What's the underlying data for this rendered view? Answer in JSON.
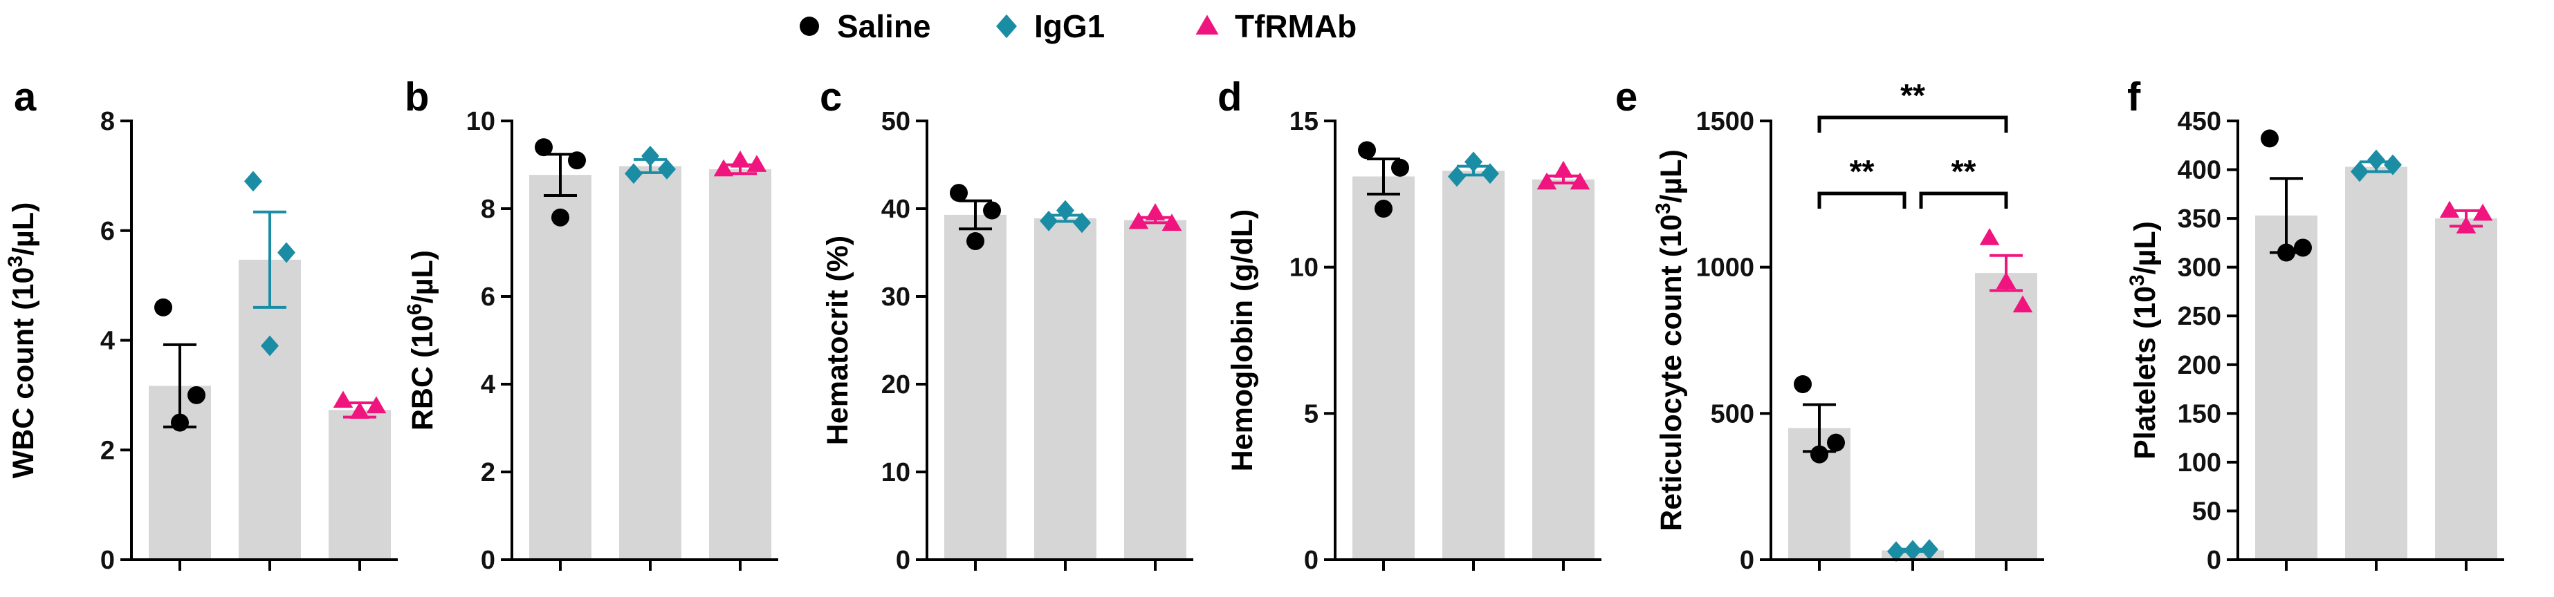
{
  "legend": {
    "items": [
      {
        "name": "Saline",
        "shape": "circle",
        "color": "#000000"
      },
      {
        "name": "IgG1",
        "shape": "diamond",
        "color": "#1a8da5"
      },
      {
        "name": "TfRMAb",
        "shape": "triangle",
        "color": "#f0157e"
      }
    ]
  },
  "colors": {
    "bar": "#d6d6d6",
    "axis": "#000000"
  },
  "chart_data": [
    {
      "panel": "a",
      "type": "bar",
      "ylabel": "WBC count (10^3/µL)",
      "ylabel_main": "WBC count (10",
      "ylabel_sup": "3",
      "ylabel_tail": "/µL)",
      "ylim": [
        0,
        8
      ],
      "ticks": [
        0,
        2,
        4,
        6,
        8
      ],
      "categories": [
        "Saline",
        "IgG1",
        "TfRMAb"
      ],
      "means": [
        3.17,
        5.47,
        2.73
      ],
      "sem": [
        0.75,
        0.87,
        0.13
      ],
      "points": [
        [
          4.6,
          2.5,
          3.0
        ],
        [
          6.9,
          3.9,
          5.6
        ],
        [
          2.9,
          2.7,
          2.8
        ]
      ]
    },
    {
      "panel": "b",
      "type": "bar",
      "ylabel": "RBC (10^6/µL)",
      "ylabel_main": "RBC (10",
      "ylabel_sup": "6",
      "ylabel_tail": "/µL)",
      "ylim": [
        0,
        10
      ],
      "ticks": [
        0,
        2,
        4,
        6,
        8,
        10
      ],
      "categories": [
        "Saline",
        "IgG1",
        "TfRMAb"
      ],
      "means": [
        8.77,
        8.97,
        8.9
      ],
      "sem": [
        0.47,
        0.15,
        0.1
      ],
      "points": [
        [
          9.4,
          7.8,
          9.1
        ],
        [
          8.8,
          9.2,
          8.9
        ],
        [
          8.9,
          9.1,
          9.0
        ]
      ]
    },
    {
      "panel": "c",
      "type": "bar",
      "ylabel": "Hematocrit (%)",
      "ylabel_main": "Hematocrit (%)",
      "ylabel_sup": "",
      "ylabel_tail": "",
      "ylim": [
        0,
        50
      ],
      "ticks": [
        0,
        10,
        20,
        30,
        40,
        50
      ],
      "categories": [
        "Saline",
        "IgG1",
        "TfRMAb"
      ],
      "means": [
        39.3,
        38.9,
        38.7
      ],
      "sem": [
        1.6,
        0.35,
        0.3
      ],
      "points": [
        [
          41.8,
          36.3,
          39.8
        ],
        [
          38.6,
          39.8,
          38.4
        ],
        [
          38.5,
          39.5,
          38.3
        ]
      ]
    },
    {
      "panel": "d",
      "type": "bar",
      "ylabel": "Hemoglobin (g/dL)",
      "ylabel_main": "Hemoglobin (g/dL)",
      "ylabel_sup": "",
      "ylabel_tail": "",
      "ylim": [
        0,
        15
      ],
      "ticks": [
        0,
        5,
        10,
        15
      ],
      "categories": [
        "Saline",
        "IgG1",
        "TfRMAb"
      ],
      "means": [
        13.1,
        13.3,
        13.0
      ],
      "sem": [
        0.6,
        0.15,
        0.12
      ],
      "points": [
        [
          14.0,
          12.0,
          13.4
        ],
        [
          13.1,
          13.6,
          13.2
        ],
        [
          12.9,
          13.3,
          12.9
        ]
      ]
    },
    {
      "panel": "e",
      "type": "bar",
      "ylabel": "Reticulocyte count (10^3/µL)",
      "ylabel_main": "Reticulocyte count  (10",
      "ylabel_sup": "3",
      "ylabel_tail": "/µL)",
      "ylim": [
        0,
        1500
      ],
      "ticks": [
        0,
        500,
        1000,
        1500
      ],
      "categories": [
        "Saline",
        "IgG1",
        "TfRMAb"
      ],
      "means": [
        450,
        32,
        980
      ],
      "sem": [
        80,
        4,
        60
      ],
      "points": [
        [
          600,
          360,
          400
        ],
        [
          28,
          32,
          35
        ],
        [
          1100,
          950,
          870
        ]
      ],
      "significance": [
        {
          "from": 0,
          "to": 2,
          "level": 1,
          "label": "**"
        },
        {
          "from": 0,
          "to": 1,
          "level": 0,
          "label": "**"
        },
        {
          "from": 1,
          "to": 2,
          "level": 0,
          "label": "**"
        }
      ]
    },
    {
      "panel": "f",
      "type": "bar",
      "ylabel": "Platelets (10^3/µL)",
      "ylabel_main": "Platelets (10",
      "ylabel_sup": "3",
      "ylabel_tail": "/µL)",
      "ylim": [
        0,
        450
      ],
      "ticks": [
        0,
        50,
        100,
        150,
        200,
        250,
        300,
        350,
        400,
        450
      ],
      "categories": [
        "Saline",
        "IgG1",
        "TfRMAb"
      ],
      "means": [
        353,
        403,
        350
      ],
      "sem": [
        38,
        5,
        8
      ],
      "points": [
        [
          432,
          315,
          320
        ],
        [
          398,
          410,
          405
        ],
        [
          358,
          342,
          355
        ]
      ]
    }
  ]
}
